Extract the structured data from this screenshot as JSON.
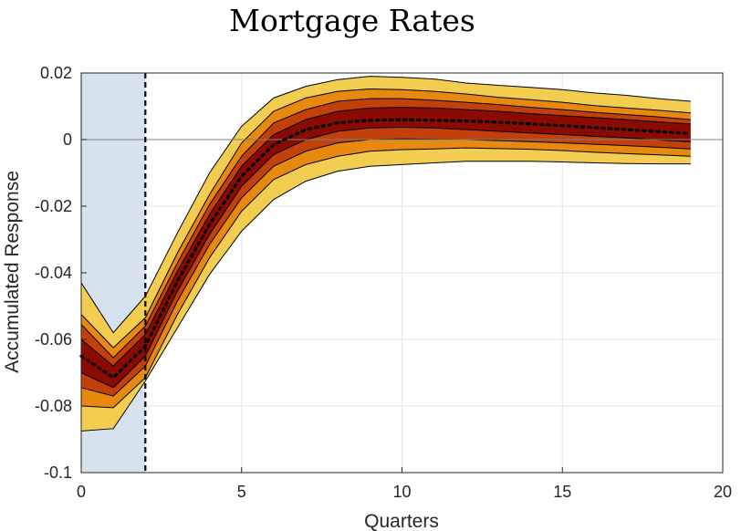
{
  "chart_data": {
    "type": "area",
    "title": "Mortgage Rates",
    "xlabel": "Quarters",
    "ylabel": "Accumulated Response",
    "xlim": [
      0,
      20
    ],
    "ylim": [
      -0.1,
      0.02
    ],
    "xticks": [
      0,
      5,
      10,
      15,
      20
    ],
    "xtick_labels": [
      "0",
      "5",
      "10",
      "15",
      "20"
    ],
    "yticks": [
      0.02,
      0,
      -0.02,
      -0.04,
      -0.06,
      -0.08,
      -0.1
    ],
    "ytick_labels": [
      "0.02",
      "0",
      "-0.02",
      "-0.04",
      "-0.06",
      "-0.08",
      "-0.1"
    ],
    "grid": true,
    "zero_line": true,
    "shaded_region": {
      "x": [
        0,
        2
      ],
      "color": "#d6e3ef"
    },
    "vertical_marker_x": 2,
    "x": [
      0,
      1,
      2,
      3,
      4,
      5,
      6,
      7,
      8,
      9,
      10,
      11,
      12,
      13,
      14,
      15,
      16,
      17,
      18,
      19
    ],
    "bands": [
      {
        "color": "#f2cd4f",
        "upper": [
          -0.043,
          -0.058,
          -0.047,
          -0.028,
          -0.01,
          0.004,
          0.0125,
          0.016,
          0.018,
          0.019,
          0.0187,
          0.0182,
          0.017,
          0.0163,
          0.0157,
          0.015,
          0.014,
          0.0133,
          0.0123,
          0.0115
        ],
        "lower": [
          -0.0875,
          -0.0868,
          -0.0725,
          -0.0565,
          -0.0405,
          -0.0275,
          -0.018,
          -0.0125,
          -0.0095,
          -0.008,
          -0.0075,
          -0.007,
          -0.0065,
          -0.0065,
          -0.0065,
          -0.0067,
          -0.007,
          -0.0072,
          -0.0073,
          -0.0073
        ]
      },
      {
        "color": "#e8890f",
        "upper": [
          -0.0525,
          -0.0625,
          -0.0535,
          -0.034,
          -0.0165,
          -0.001,
          0.0085,
          0.0125,
          0.0145,
          0.0152,
          0.015,
          0.0145,
          0.0137,
          0.0127,
          0.012,
          0.0112,
          0.0102,
          0.0095,
          0.0088,
          0.008
        ]
      },
      {
        "color": "#c2410a",
        "upper": [
          -0.0555,
          -0.0655,
          -0.056,
          -0.037,
          -0.0195,
          -0.005,
          0.005,
          0.009,
          0.0115,
          0.0123,
          0.0123,
          0.0118,
          0.0112,
          0.0105,
          0.0097,
          0.009,
          0.0082,
          0.0075,
          0.0068,
          0.006
        ]
      },
      {
        "color": "#8a0b02",
        "upper": [
          -0.06,
          -0.068,
          -0.0585,
          -0.0395,
          -0.0225,
          -0.008,
          0.0015,
          0.006,
          0.0085,
          0.0095,
          0.0097,
          0.0095,
          0.009,
          0.0085,
          0.0078,
          0.0072,
          0.0066,
          0.006,
          0.0053,
          0.0047
        ],
        "lower": [
          -0.07,
          -0.0745,
          -0.065,
          -0.0455,
          -0.0285,
          -0.014,
          -0.0045,
          0.0,
          0.0025,
          0.0035,
          0.0037,
          0.0035,
          0.003,
          0.0025,
          0.002,
          0.0015,
          0.001,
          0.0005,
          -0.0001,
          -0.0007
        ]
      },
      {
        "color": "#c2410a",
        "lower": [
          -0.0745,
          -0.077,
          -0.068,
          -0.0485,
          -0.0315,
          -0.0175,
          -0.008,
          -0.0035,
          -0.001,
          0.0,
          0.0002,
          0.0001,
          0.0,
          -0.0003,
          -0.0006,
          -0.001,
          -0.0014,
          -0.0018,
          -0.0023,
          -0.0028
        ]
      },
      {
        "color": "#e8890f",
        "lower": [
          -0.08,
          -0.0805,
          -0.0715,
          -0.0525,
          -0.0355,
          -0.0215,
          -0.012,
          -0.0075,
          -0.005,
          -0.0035,
          -0.003,
          -0.0028,
          -0.0025,
          -0.0027,
          -0.0029,
          -0.0033,
          -0.0038,
          -0.0042,
          -0.0046,
          -0.005
        ]
      }
    ],
    "median": {
      "style": "dotted",
      "color": "#000000",
      "values": [
        -0.065,
        -0.0715,
        -0.062,
        -0.0425,
        -0.0255,
        -0.011,
        -0.0015,
        0.003,
        0.005,
        0.0058,
        0.006,
        0.0058,
        0.0056,
        0.0052,
        0.0047,
        0.0042,
        0.0036,
        0.003,
        0.0024,
        0.0018
      ]
    }
  }
}
